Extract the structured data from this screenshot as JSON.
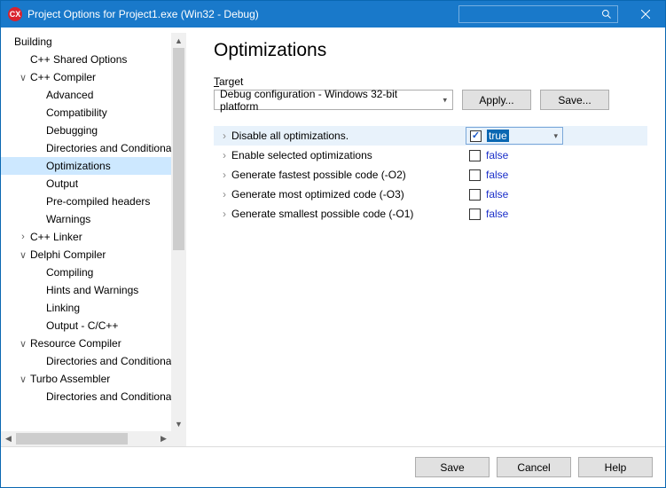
{
  "window": {
    "title": "Project Options for Project1.exe  (Win32 - Debug)",
    "app_icon_text": "CX"
  },
  "sidebar": {
    "items": [
      {
        "label": "Building",
        "depth": 0,
        "expander": ""
      },
      {
        "label": "C++ Shared Options",
        "depth": 1,
        "expander": ""
      },
      {
        "label": "C++ Compiler",
        "depth": 1,
        "expander": "∨"
      },
      {
        "label": "Advanced",
        "depth": 2,
        "expander": ""
      },
      {
        "label": "Compatibility",
        "depth": 2,
        "expander": ""
      },
      {
        "label": "Debugging",
        "depth": 2,
        "expander": ""
      },
      {
        "label": "Directories and Conditionals",
        "depth": 2,
        "expander": ""
      },
      {
        "label": "Optimizations",
        "depth": 2,
        "expander": "",
        "selected": true
      },
      {
        "label": "Output",
        "depth": 2,
        "expander": ""
      },
      {
        "label": "Pre-compiled headers",
        "depth": 2,
        "expander": ""
      },
      {
        "label": "Warnings",
        "depth": 2,
        "expander": ""
      },
      {
        "label": "C++ Linker",
        "depth": 1,
        "expander": "›"
      },
      {
        "label": "Delphi Compiler",
        "depth": 1,
        "expander": "∨"
      },
      {
        "label": "Compiling",
        "depth": 2,
        "expander": ""
      },
      {
        "label": "Hints and Warnings",
        "depth": 2,
        "expander": ""
      },
      {
        "label": "Linking",
        "depth": 2,
        "expander": ""
      },
      {
        "label": "Output - C/C++",
        "depth": 2,
        "expander": ""
      },
      {
        "label": "Resource Compiler",
        "depth": 1,
        "expander": "∨"
      },
      {
        "label": "Directories and Conditionals",
        "depth": 2,
        "expander": ""
      },
      {
        "label": "Turbo Assembler",
        "depth": 1,
        "expander": "∨"
      },
      {
        "label": "Directories and Conditionals",
        "depth": 2,
        "expander": ""
      }
    ]
  },
  "main": {
    "heading": "Optimizations",
    "target_label_pre": "T",
    "target_label_rest": "arget",
    "target_value": "Debug configuration - Windows 32-bit platform",
    "apply_label": "Apply...",
    "save_label": "Save...",
    "options": [
      {
        "label": "Disable all optimizations.",
        "checked": true,
        "value": "true",
        "selected": true
      },
      {
        "label": "Enable selected optimizations",
        "checked": false,
        "value": "false"
      },
      {
        "label": "Generate fastest possible code (-O2)",
        "checked": false,
        "value": "false"
      },
      {
        "label": "Generate most optimized code (-O3)",
        "checked": false,
        "value": "false"
      },
      {
        "label": "Generate smallest possible code (-O1)",
        "checked": false,
        "value": "false"
      }
    ]
  },
  "footer": {
    "save": "Save",
    "cancel": "Cancel",
    "help": "Help"
  }
}
